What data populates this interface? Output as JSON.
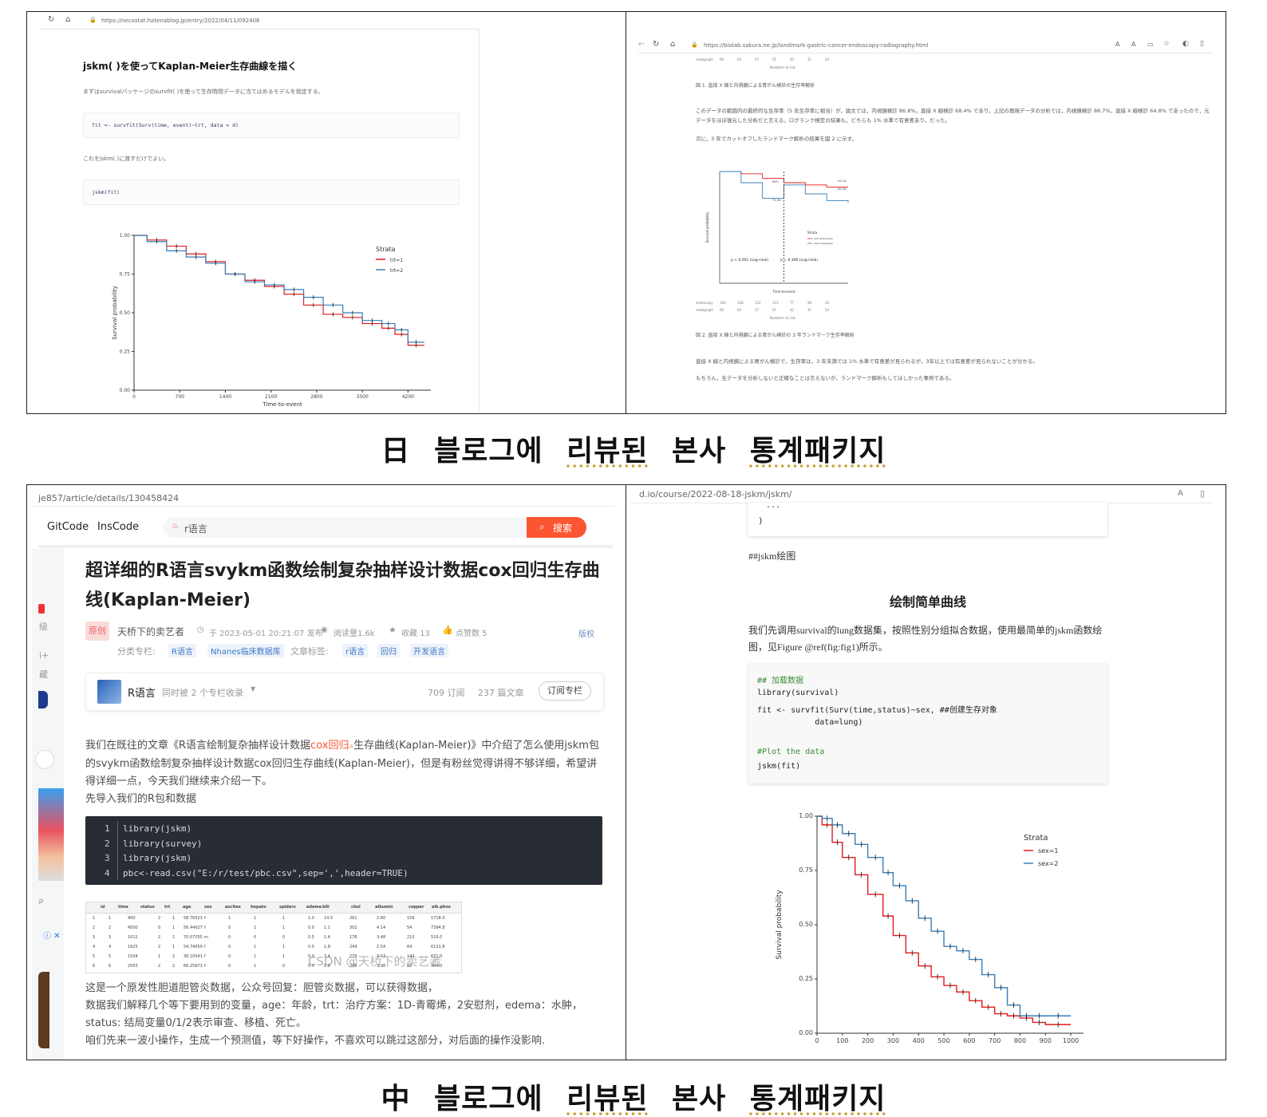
{
  "captions": {
    "japan": [
      "日",
      "블로그에",
      "리뷰된",
      "본사",
      "통계패키지"
    ],
    "china": [
      "中",
      "블로그에",
      "리뷰된",
      "본사",
      "통계패키지"
    ]
  },
  "panel_jp_left": {
    "url": "https://necostat.hatenablog.jp/entry/2022/04/11/092406",
    "title": "jskm( )を使ってKaplan-Meier生存曲線を描く",
    "intro": "まずはsurvivalパッケージのsurvfit( )を使って生存時間データに当てはめるモデルを指定する。",
    "code1": "fit <- survfit(Surv(time, event)~trt, data = d)",
    "mid": "これをjskm( )に渡すだけでよい。",
    "code2": "jskm(fit)"
  },
  "panel_jp_right": {
    "url": "https://biolab.sakura.ne.jp/landmark-gastric-cancer-endoscopy-radiography.html",
    "table_top_label": "radiograph",
    "table_top_values": [
      "69",
      "64",
      "57",
      "51",
      "42",
      "31",
      "24"
    ],
    "risk_label": "Numbers at risk",
    "fig1_caption": "図 1. 直接 X 線と内視鏡による胃がん検診の生存率解析",
    "para1": "このデータの範囲内の最終的な生存率（5 年生存率に相当）が，論文では，内視鏡検診 86.8%，直接 X 線検診 68.4% であり，上記の再現データの分析では，内視鏡検診 86.7%，直接 X 線検診 64.8% であったので，元データをほぼ復元した分析だと言える。ログランク検定の結果も，どちらも 1% 水準で有意差あり，だった。",
    "para2": "次に，3 年でカットオフしたランドマーク解析の結果を図 2 に示す。",
    "fig2_caption": "図 2. 直接 X 線と内視鏡による胃がん検診の 3 年ランドマーク生存率解析",
    "para3": "直接 X 線と内視鏡による胃がん検診で，生存率は，3 年未満では 1% 水準で有意差が見られるが，3年以上では有意差が見られないことが分かる。",
    "para4": "もちろん，生データを分析しないと正確なことは言えないが，ランドマーク解析もしてほしかった事例である。",
    "pval1": "p < 0.001 (Log-rank)",
    "pval2": "p = 0.306 (Log-rank)",
    "row1": "endoscopy",
    "row1_vals": [
      "100",
      "128",
      "122",
      "115",
      "77",
      "48",
      "16"
    ],
    "row2": "radiograph",
    "row2_vals": [
      "69",
      "64",
      "57",
      "51",
      "42",
      "31",
      "24"
    ],
    "xlabel": "Time-to-event",
    "pct_labels": [
      "93.2%",
      "85.9%",
      "89%",
      "75.4%"
    ]
  },
  "panel_cn_left": {
    "url": "je857/article/details/130458424",
    "nav": [
      "GitCode",
      "InsCode"
    ],
    "search_placeholder": "r语言",
    "search_button": "搜索",
    "title": "超详细的R语言svykm函数绘制复杂抽样设计数据cox回归生存曲线(Kaplan-Meier)",
    "badge": "原创",
    "author": "天桥下的卖艺者",
    "date": "于 2023-05-01 20:21:07 发布",
    "reads": "阅读量1.6k",
    "favs": "收藏 13",
    "likes": "点赞数 5",
    "copyright": "版权",
    "category_label": "分类专栏:",
    "categories": [
      "R语言",
      "Nhanes临床数据库"
    ],
    "tags_label": "文章标签:",
    "tags": [
      "r语言",
      "回归",
      "开发语言"
    ],
    "column_name": "R语言",
    "column_sub": "同时被 2 个专栏收录",
    "column_subs": "709 订阅",
    "column_articles": "237 篇文章",
    "subscribe": "订阅专栏",
    "p1a": "我们在既往的文章《R语言绘制复杂抽样设计数据",
    "p1link": "cox回归",
    "p1b": "生存曲线(Kaplan-Meier)》中介绍了怎么使用jskm包的svykm函数绘制复杂抽样设计数据cox回归生存曲线(Kaplan-Meier)，但是有粉丝觉得讲得不够详细，希望讲得详细一点，今天我们继续来介绍一下。",
    "p2": "先导入我们的R包和数据",
    "code": [
      {
        "n": "1",
        "t": "library(jskm)"
      },
      {
        "n": "2",
        "t": "library(survey)"
      },
      {
        "n": "3",
        "t": "library(jskm)"
      },
      {
        "n": "4",
        "t": "pbc<-read.csv(\"E:/r/test/pbc.csv\",sep=',',header=TRUE)"
      }
    ],
    "table_headers": [
      "id",
      "time",
      "status",
      "trt",
      "age",
      "sex",
      "ascites",
      "hepato",
      "spiders",
      "edema",
      "bili",
      "chol",
      "albumin",
      "copper",
      "alk.phos"
    ],
    "table_rows": [
      [
        "1",
        "1",
        "400",
        "2",
        "1",
        "58.76523",
        "f",
        "1",
        "1",
        "1",
        "1.0",
        "14.5",
        "261",
        "2.60",
        "156",
        "1718.0"
      ],
      [
        "2",
        "2",
        "4500",
        "0",
        "1",
        "56.44627",
        "f",
        "0",
        "1",
        "1",
        "0.0",
        "1.1",
        "302",
        "4.14",
        "54",
        "7394.8"
      ],
      [
        "3",
        "3",
        "1012",
        "2",
        "1",
        "70.07255",
        "m",
        "0",
        "0",
        "0",
        "0.5",
        "1.4",
        "176",
        "3.48",
        "210",
        "516.0"
      ],
      [
        "4",
        "4",
        "1925",
        "2",
        "1",
        "54.74059",
        "f",
        "0",
        "1",
        "1",
        "0.5",
        "1.8",
        "244",
        "2.54",
        "64",
        "6121.8"
      ],
      [
        "5",
        "5",
        "1504",
        "1",
        "2",
        "38.10541",
        "f",
        "0",
        "1",
        "1",
        "0.0",
        "3.4",
        "279",
        "3.53",
        "143",
        "671.0"
      ],
      [
        "6",
        "6",
        "2503",
        "2",
        "2",
        "66.25873",
        "f",
        "0",
        "1",
        "0",
        "0.0",
        "0.8",
        "248",
        "3.98",
        "50",
        "944.0"
      ]
    ],
    "watermark": "CSDN @天桥下的卖艺者",
    "p3": "这是一个原发性胆道胆管炎数据，公众号回复：胆管炎数据，可以获得数据，",
    "p4": "数据我们解释几个等下要用到的变量，age：年龄，trt：治疗方案：1D-青霉烯，2安慰剂，edema：水肿，",
    "p5": "status: 结局变量0/1/2表示审查、移植、死亡。",
    "p6": "咱们先来一波小操作，生成一个预测值，等下好操作，不喜欢可以跳过这部分，对后面的操作没影响.",
    "side_chars": [
      "级",
      "藏",
      "i+"
    ]
  },
  "panel_cn_right": {
    "url": "d.io/course/2022-08-18-jskm/jskm/",
    "code_top": ")",
    "heading_md": "##jskm绘图",
    "section_title": "绘制简单曲线",
    "para": "我们先调用survival的lung数据集，按照性别分组拟合数据，使用最简单的jskm函数绘图，见Figure @ref(fig:fig1)所示。",
    "code": [
      {
        "t": "## 加载数据",
        "c": true
      },
      {
        "t": "library(survival)",
        "c": false
      },
      {
        "t": "fit <- survfit(Surv(time,status)~sex, ##创建生存对象",
        "c": false
      },
      {
        "t": "            data=lung)",
        "c": false
      },
      {
        "t": "",
        "c": false
      },
      {
        "t": "#Plot the data",
        "c": true
      },
      {
        "t": "jskm(fit)",
        "c": false
      }
    ]
  },
  "chart_data": [
    {
      "type": "line",
      "title": "",
      "xlabel": "Time-to-event",
      "ylabel": "Survival probability",
      "xlim": [
        0,
        4550
      ],
      "ylim": [
        0,
        1
      ],
      "x_ticks": [
        "0",
        "700",
        "1400",
        "2100",
        "2800",
        "3500",
        "4200"
      ],
      "y_ticks": [
        "0.00",
        "0.25",
        "0.50",
        "0.75",
        "1.00"
      ],
      "legend_title": "Strata",
      "legend_position": "top-right",
      "series": [
        {
          "name": "trt=1",
          "color": "#e41a1c",
          "x": [
            0,
            200,
            500,
            800,
            1100,
            1400,
            1700,
            2000,
            2300,
            2600,
            2900,
            3200,
            3500,
            3800,
            4000,
            4200,
            4450
          ],
          "y": [
            1.0,
            0.97,
            0.93,
            0.88,
            0.83,
            0.75,
            0.71,
            0.67,
            0.62,
            0.55,
            0.49,
            0.47,
            0.43,
            0.4,
            0.36,
            0.29,
            0.29
          ]
        },
        {
          "name": "trt=2",
          "color": "#377eb8",
          "x": [
            0,
            200,
            500,
            800,
            1100,
            1400,
            1700,
            2000,
            2300,
            2600,
            2900,
            3200,
            3500,
            3800,
            4000,
            4200,
            4450
          ],
          "y": [
            1.0,
            0.96,
            0.9,
            0.86,
            0.82,
            0.75,
            0.7,
            0.68,
            0.65,
            0.6,
            0.55,
            0.5,
            0.45,
            0.43,
            0.39,
            0.31,
            0.31
          ]
        }
      ]
    },
    {
      "type": "line",
      "title": "",
      "xlabel": "Time-to-event",
      "ylabel": "Survival probability",
      "xlim": [
        0,
        6
      ],
      "ylim": [
        0.5,
        1
      ],
      "legend_title": "Strata",
      "series": [
        {
          "name": "sex=endoscopy",
          "color": "#e41a1c",
          "x": [
            0,
            1,
            2,
            3,
            4,
            5,
            6
          ],
          "y": [
            1.0,
            0.99,
            0.97,
            0.95,
            0.94,
            0.93,
            0.93
          ]
        },
        {
          "name": "sex=radiograph",
          "color": "#377eb8",
          "x": [
            0,
            1,
            2,
            3,
            4,
            5,
            6
          ],
          "y": [
            1.0,
            0.95,
            0.88,
            0.94,
            0.9,
            0.87,
            0.86
          ]
        }
      ]
    },
    {
      "type": "line",
      "title": "",
      "xlabel": "",
      "ylabel": "Survival probability",
      "xlim": [
        0,
        1050
      ],
      "ylim": [
        0,
        1
      ],
      "x_ticks": [
        "0",
        "100",
        "200",
        "300",
        "400",
        "500",
        "600",
        "700",
        "800",
        "900",
        "1000"
      ],
      "y_ticks": [
        "0.00",
        "0.25",
        "0.50",
        "0.75",
        "1.00"
      ],
      "legend_title": "Strata",
      "legend_position": "top-right",
      "series": [
        {
          "name": "sex=1",
          "color": "#e41a1c",
          "x": [
            0,
            20,
            60,
            100,
            150,
            200,
            260,
            300,
            350,
            400,
            450,
            500,
            550,
            600,
            650,
            700,
            750,
            800,
            850,
            900,
            1000
          ],
          "y": [
            1.0,
            0.96,
            0.88,
            0.81,
            0.73,
            0.64,
            0.54,
            0.45,
            0.37,
            0.31,
            0.26,
            0.22,
            0.19,
            0.15,
            0.12,
            0.09,
            0.08,
            0.07,
            0.05,
            0.04,
            0.04
          ]
        },
        {
          "name": "sex=2",
          "color": "#377eb8",
          "x": [
            0,
            20,
            60,
            100,
            150,
            200,
            260,
            300,
            350,
            400,
            450,
            500,
            550,
            600,
            650,
            700,
            750,
            800,
            850,
            900,
            1000
          ],
          "y": [
            1.0,
            0.99,
            0.96,
            0.92,
            0.87,
            0.81,
            0.74,
            0.68,
            0.61,
            0.53,
            0.47,
            0.4,
            0.38,
            0.34,
            0.27,
            0.21,
            0.13,
            0.08,
            0.08,
            0.08,
            0.08
          ]
        }
      ]
    }
  ]
}
